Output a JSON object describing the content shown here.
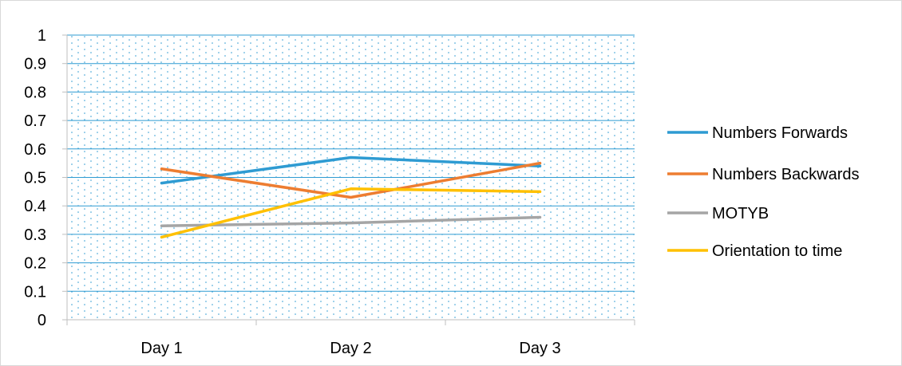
{
  "chart_data": {
    "type": "line",
    "title": "",
    "xlabel": "",
    "ylabel": "",
    "categories": [
      "Day 1",
      "Day 2",
      "Day 3"
    ],
    "ylim": [
      0,
      1
    ],
    "yticks": [
      "0",
      "0.1",
      "0.2",
      "0.3",
      "0.4",
      "0.5",
      "0.6",
      "0.7",
      "0.8",
      "0.9",
      "1"
    ],
    "grid": true,
    "plot_background": "dotted light blue",
    "legend_position": "right",
    "series": [
      {
        "name": "Numbers Forwards",
        "color": "#2E9BD2",
        "values": [
          0.48,
          0.57,
          0.54
        ]
      },
      {
        "name": "Numbers Backwards",
        "color": "#ED7D31",
        "values": [
          0.53,
          0.43,
          0.55
        ]
      },
      {
        "name": "MOTYB",
        "color": "#A5A5A5",
        "values": [
          0.33,
          0.34,
          0.36
        ]
      },
      {
        "name": "Orientation to time",
        "color": "#FFC000",
        "values": [
          0.29,
          0.46,
          0.45
        ]
      }
    ],
    "colors": {
      "gridline": "#2E9BD2",
      "dots": "#2E9BD2",
      "axis": "#bfbfbf"
    }
  }
}
